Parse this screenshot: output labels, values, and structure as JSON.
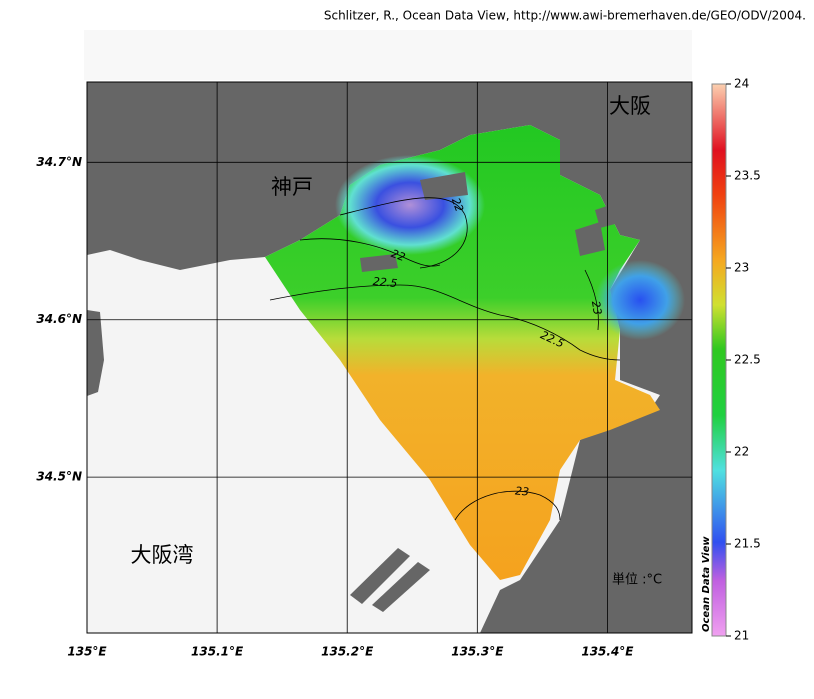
{
  "credit": "Schlitzer, R., Ocean Data View, http://www.awi-bremerhaven.de/GEO/ODV/2004.",
  "map": {
    "xlim": [
      135,
      135.465
    ],
    "ylim": [
      34.401,
      34.751
    ],
    "xticks": [
      {
        "value": 135,
        "label": "135°E"
      },
      {
        "value": 135.1,
        "label": "135.1°E"
      },
      {
        "value": 135.2,
        "label": "135.2°E"
      },
      {
        "value": 135.3,
        "label": "135.3°E"
      },
      {
        "value": 135.4,
        "label": "135.4°E"
      }
    ],
    "yticks": [
      {
        "value": 34.5,
        "label": "34.5°N"
      },
      {
        "value": 34.6,
        "label": "34.6°N"
      },
      {
        "value": 34.7,
        "label": "34.7°N"
      }
    ],
    "places": [
      "大阪",
      "神戸",
      "大阪湾"
    ],
    "unit": "単位 :°C",
    "contours": [
      22,
      22,
      22.5,
      22.5,
      23,
      23
    ]
  },
  "colorbar": {
    "title": "Ocean Data View",
    "lim": [
      21,
      24
    ],
    "ticks": [
      21,
      21.5,
      22,
      22.5,
      23,
      23.5,
      24
    ]
  }
}
